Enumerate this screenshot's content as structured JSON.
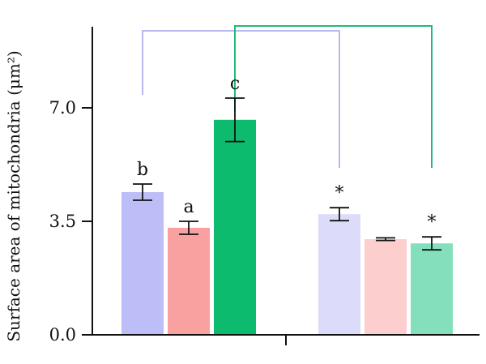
{
  "chart_data": {
    "type": "bar",
    "ylabel": "Surface area of mitochondria (μm²)",
    "ylim": [
      0,
      9.5
    ],
    "yticks": [
      {
        "value": 0,
        "label": "0.0"
      },
      {
        "value": 3.5,
        "label": "3.5"
      },
      {
        "value": 7,
        "label": "7.0"
      }
    ],
    "bars": [
      {
        "group": 0,
        "value": 4.4,
        "error": 0.25,
        "color": "#bdbdf7",
        "annotation": "b"
      },
      {
        "group": 0,
        "value": 3.3,
        "error": 0.2,
        "color": "#f9a0a0",
        "annotation": "a"
      },
      {
        "group": 0,
        "value": 6.63,
        "error": 0.67,
        "color": "#0cbb6e",
        "annotation": "c"
      },
      {
        "group": 1,
        "value": 3.72,
        "error": 0.2,
        "color": "#dcdcfa",
        "annotation": "*"
      },
      {
        "group": 1,
        "value": 2.95,
        "error": 0.04,
        "color": "#fdcece",
        "annotation": ""
      },
      {
        "group": 1,
        "value": 2.82,
        "error": 0.2,
        "color": "#84dfbd",
        "annotation": "*"
      }
    ],
    "brackets": [
      {
        "from_bar": 0,
        "to_bar": 3,
        "color": "#b8b8ee"
      },
      {
        "from_bar": 2,
        "to_bar": 5,
        "color": "#1dbb7a"
      }
    ]
  }
}
